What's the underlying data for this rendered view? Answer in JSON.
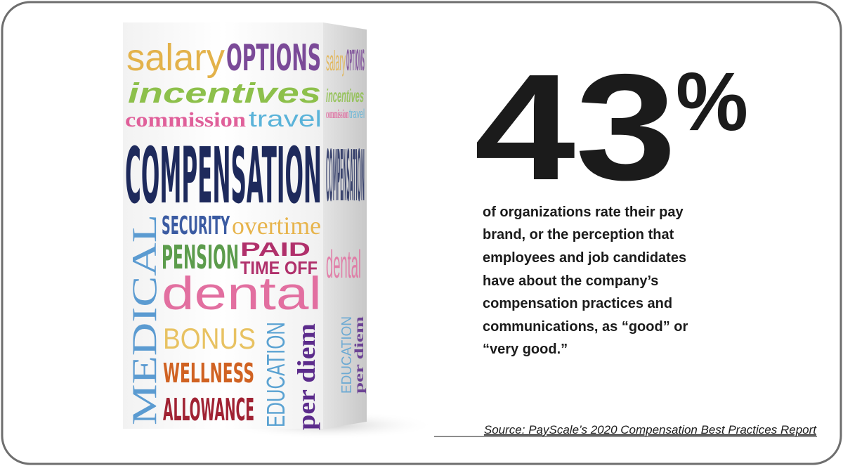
{
  "box": {
    "words": [
      "salary",
      "OPTIONS",
      "incentives",
      "commission",
      "travel",
      "COMPENSATION",
      "MEDICAL",
      "SECURITY",
      "overtime",
      "PENSION",
      "PAID",
      "TIME OFF",
      "dental",
      "BONUS",
      "WELLNESS",
      "ALLOWANCE",
      "EDUCATION",
      "per diem"
    ]
  },
  "stat": {
    "number": "43",
    "unit": "%",
    "description_lines": [
      "of organizations rate their pay",
      "brand, or the perception that",
      "employees and job candidates",
      "have about the company’s",
      "compensation practices and",
      "communications, as “good” or",
      "“very good.”"
    ]
  },
  "source": "Source: PayScale’s 2020 Compensation Best Practices Report"
}
